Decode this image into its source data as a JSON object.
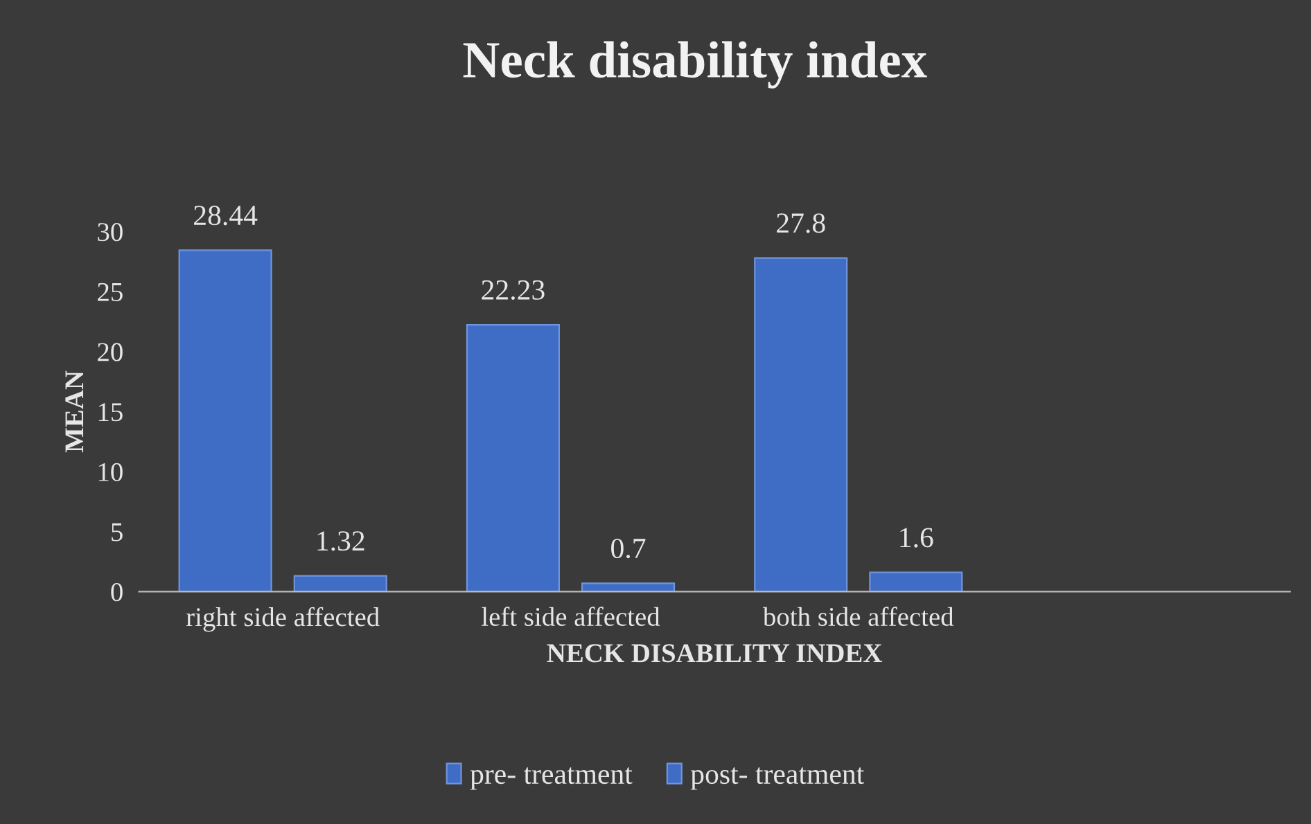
{
  "chart_data": {
    "type": "bar",
    "title": "Neck disability index",
    "xlabel": "NECK DISABILITY INDEX",
    "ylabel": "MEAN",
    "categories": [
      "right side affected",
      "left side affected",
      "both side affected",
      null
    ],
    "series": [
      {
        "name": "pre- treatment",
        "color": "#3f6cc4",
        "values": [
          28.44,
          22.23,
          27.8,
          null
        ]
      },
      {
        "name": "post- treatment",
        "color": "#3f6cc4",
        "values": [
          1.32,
          0.7,
          1.6,
          null
        ]
      }
    ],
    "ylim": [
      0,
      30
    ],
    "yticks": [
      0,
      5,
      10,
      15,
      20,
      25,
      30
    ],
    "grid": false,
    "legend": "bottom",
    "data_labels": true
  }
}
